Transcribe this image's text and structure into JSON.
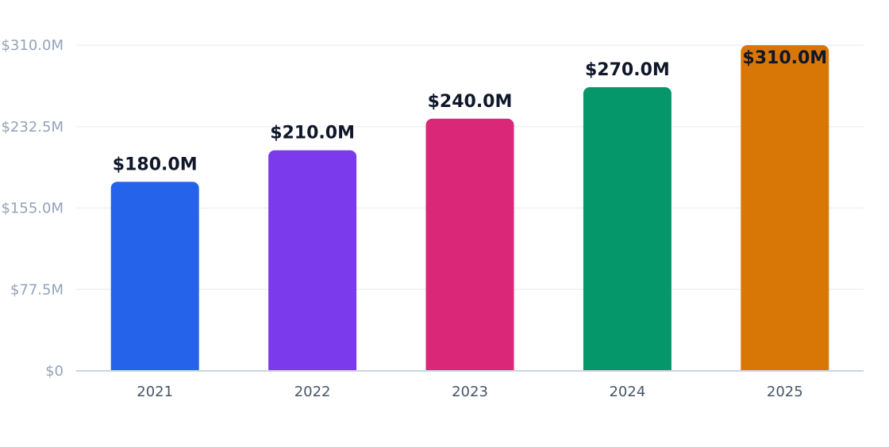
{
  "chart_data": {
    "type": "bar",
    "title": "",
    "xlabel": "",
    "ylabel": "",
    "categories": [
      "2021",
      "2022",
      "2023",
      "2024",
      "2025"
    ],
    "values": [
      180.0,
      210.0,
      240.0,
      270.0,
      310.0
    ],
    "value_labels": [
      "$180.0M",
      "$210.0M",
      "$240.0M",
      "$270.0M",
      "$310.0M"
    ],
    "bar_colors": [
      "#2563eb",
      "#7c3aed",
      "#db2777",
      "#059669",
      "#d97706"
    ],
    "ylim": [
      0,
      310.0
    ],
    "y_ticks": [
      0,
      77.5,
      155.0,
      232.5,
      310.0
    ],
    "y_tick_labels": [
      "$0",
      "$77.5M",
      "$155.0M",
      "$232.5M",
      "$310.0M"
    ],
    "unit": "M",
    "grid": true,
    "legend": "none"
  }
}
